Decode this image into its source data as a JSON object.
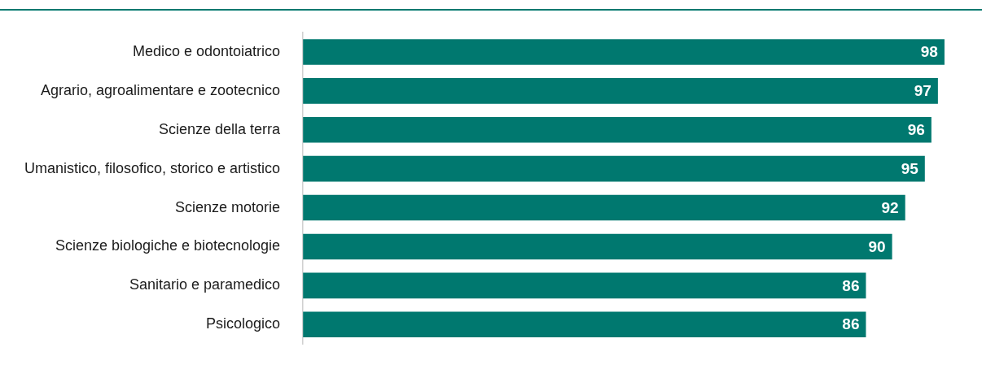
{
  "chart_data": {
    "type": "bar",
    "orientation": "horizontal",
    "categories": [
      "Medico e odontoiatrico",
      "Agrario, agroalimentare e zootecnico",
      "Scienze della terra",
      "Umanistico, filosofico, storico e artistico",
      "Scienze motorie",
      "Scienze biologiche e biotecnologie",
      "Sanitario e paramedico",
      "Psicologico"
    ],
    "values": [
      98,
      97,
      96,
      95,
      92,
      90,
      86,
      86
    ],
    "color": "#00786f",
    "data_labels": true,
    "tick_labels": "y",
    "legend": false
  }
}
